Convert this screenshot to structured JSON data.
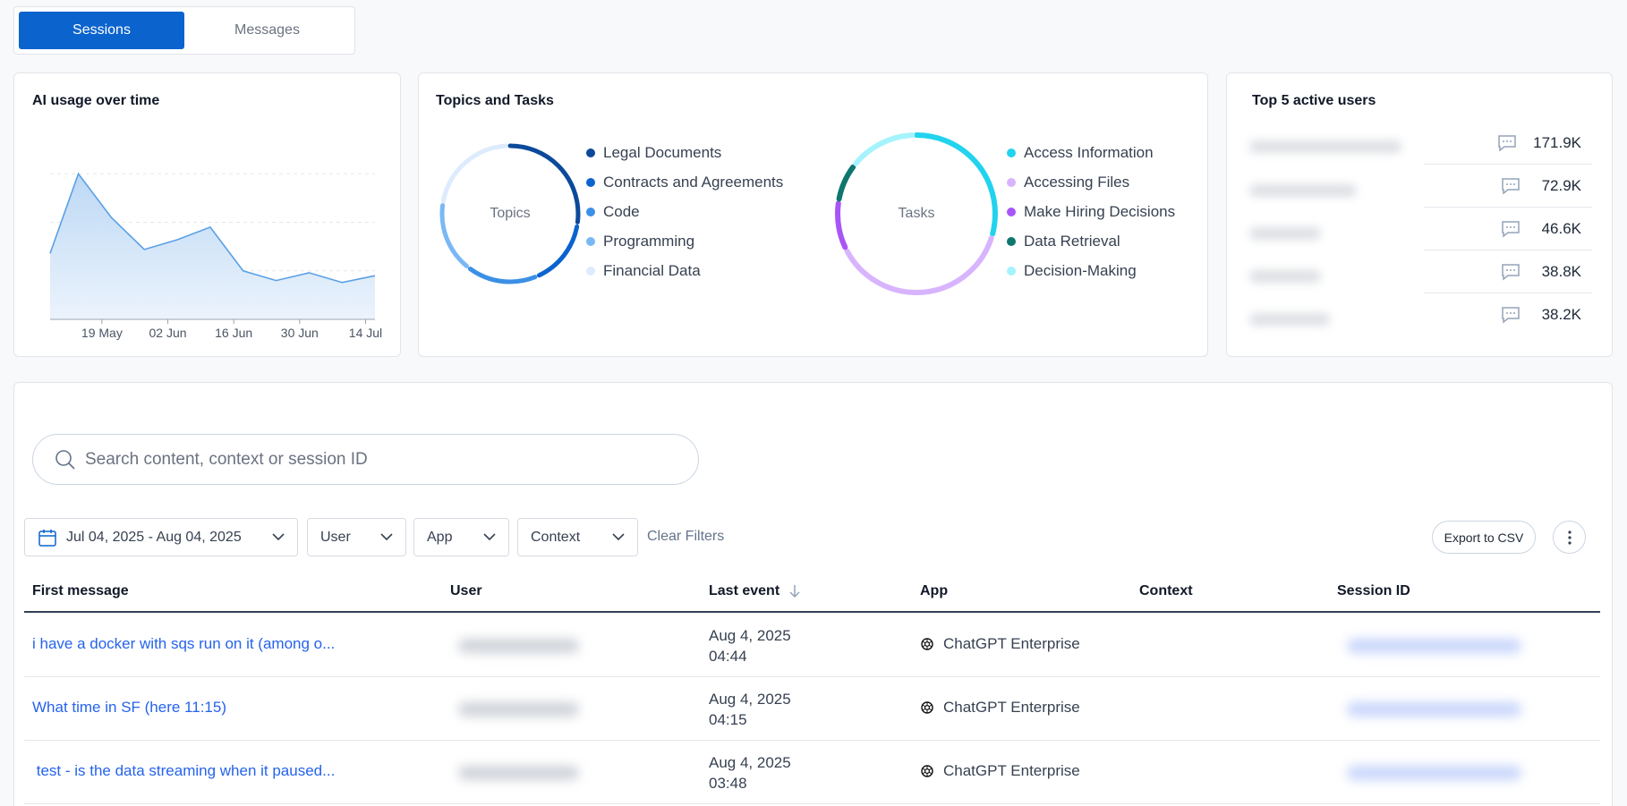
{
  "tabs": [
    {
      "label": "Sessions",
      "active": true
    },
    {
      "label": "Messages",
      "active": false
    }
  ],
  "usage": {
    "title": "AI usage over time"
  },
  "chart_data": {
    "type": "area",
    "title": "AI usage over time",
    "x": [
      "2025-05-08",
      "2025-05-14",
      "2025-05-21",
      "2025-05-28",
      "2025-06-04",
      "2025-06-11",
      "2025-06-18",
      "2025-06-25",
      "2025-07-02",
      "2025-07-09",
      "2025-07-16"
    ],
    "values": [
      68,
      150,
      105,
      72,
      82,
      95,
      50,
      40,
      48,
      38,
      45
    ],
    "xticks": [
      "19 May",
      "02 Jun",
      "16 Jun",
      "30 Jun",
      "14 Jul"
    ],
    "ylim": [
      0,
      200
    ],
    "grid": true,
    "color": "#5aa0e6"
  },
  "topics_tasks": {
    "title": "Topics and Tasks",
    "topics": {
      "center_label": "Topics",
      "items": [
        {
          "label": "Legal Documents",
          "color": "#0b4a9a",
          "share": 0.28
        },
        {
          "label": "Contracts and Agreements",
          "color": "#0b63ce",
          "share": 0.16
        },
        {
          "label": "Code",
          "color": "#3b8fe6",
          "share": 0.17
        },
        {
          "label": "Programming",
          "color": "#7ab8f5",
          "share": 0.17
        },
        {
          "label": "Financial Data",
          "color": "#dcecfd",
          "share": 0.22
        }
      ]
    },
    "tasks": {
      "center_label": "Tasks",
      "items": [
        {
          "label": "Access Information",
          "color": "#22d3ee",
          "share": 0.3
        },
        {
          "label": "Accessing Files",
          "color": "#d8b4fe",
          "share": 0.38
        },
        {
          "label": "Make Hiring Decisions",
          "color": "#a855f7",
          "share": 0.1
        },
        {
          "label": "Data Retrieval",
          "color": "#0f766e",
          "share": 0.08
        },
        {
          "label": "Decision-Making",
          "color": "#a5f3fc",
          "share": 0.14
        }
      ]
    }
  },
  "top_users": {
    "title": "Top 5 active users",
    "rows": [
      {
        "count": "171.9K"
      },
      {
        "count": "72.9K"
      },
      {
        "count": "46.6K"
      },
      {
        "count": "38.8K"
      },
      {
        "count": "38.2K"
      }
    ]
  },
  "sessions": {
    "search_placeholder": "Search content, context or session ID",
    "filters": {
      "date_range": "Jul 04, 2025 - Aug 04, 2025",
      "user": "User",
      "app": "App",
      "context": "Context",
      "clear": "Clear Filters"
    },
    "export_label": "Export to CSV",
    "columns": {
      "first_message": "First message",
      "user": "User",
      "last_event": "Last event",
      "app": "App",
      "context": "Context",
      "session_id": "Session ID"
    },
    "rows": [
      {
        "message": "i have a docker with sqs run on it (among o...",
        "date": "Aug 4, 2025",
        "time": "04:44",
        "app": "ChatGPT Enterprise"
      },
      {
        "message": "What time in SF (here 11:15)",
        "date": "Aug 4, 2025",
        "time": "04:15",
        "app": "ChatGPT Enterprise"
      },
      {
        "message": " test - is the data streaming when it paused...",
        "date": "Aug 4, 2025",
        "time": "03:48",
        "app": "ChatGPT Enterprise"
      }
    ]
  }
}
